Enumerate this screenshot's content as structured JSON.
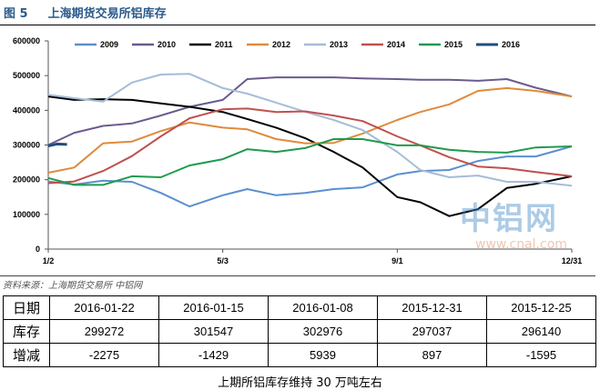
{
  "figure": {
    "number": "图 5",
    "title": "上海期货交易所铝库存"
  },
  "source": "资料来源：上海期货交易所   中铝网",
  "caption": "上期所铝库存维持 30 万吨左右",
  "watermark": {
    "logo": "中铝网",
    "url": "www.cnal.com"
  },
  "table": {
    "headers": [
      "日期",
      "2016-01-22",
      "2016-01-15",
      "2016-01-08",
      "2015-12-31",
      "2015-12-25"
    ],
    "rows": [
      {
        "label": "库存",
        "values": [
          "299272",
          "301547",
          "302976",
          "297037",
          "296140"
        ]
      },
      {
        "label": "增减",
        "values": [
          "-2275",
          "-1429",
          "5939",
          "897",
          "-1595"
        ]
      }
    ]
  },
  "chart_data": {
    "type": "line",
    "xlabel": "",
    "ylabel": "",
    "x_unit": "day of year",
    "x_ticks": [
      {
        "day": 2,
        "label": "1/2"
      },
      {
        "day": 123,
        "label": "5/3"
      },
      {
        "day": 244,
        "label": "9/1"
      },
      {
        "day": 365,
        "label": "12/31"
      }
    ],
    "ylim": [
      0,
      600000
    ],
    "y_ticks": [
      0,
      100000,
      200000,
      300000,
      400000,
      500000,
      600000
    ],
    "grid": false,
    "legend": "top",
    "x": [
      2,
      20,
      40,
      60,
      80,
      100,
      123,
      140,
      160,
      180,
      200,
      220,
      244,
      260,
      280,
      300,
      320,
      340,
      365
    ],
    "series": [
      {
        "name": "2009",
        "color": "#5b8fd0",
        "values": [
          195000,
          186000,
          197000,
          194000,
          162000,
          123000,
          155000,
          173000,
          155000,
          162000,
          173000,
          178000,
          215000,
          225000,
          228000,
          254000,
          267000,
          267000,
          296000
        ]
      },
      {
        "name": "2010",
        "color": "#6b5a8e",
        "values": [
          300000,
          335000,
          355000,
          362000,
          385000,
          410000,
          430000,
          490000,
          495000,
          495000,
          495000,
          492000,
          490000,
          488000,
          488000,
          485000,
          490000,
          465000,
          440000
        ]
      },
      {
        "name": "2011",
        "color": "#000000",
        "values": [
          440000,
          430000,
          432000,
          430000,
          420000,
          410000,
          395000,
          375000,
          350000,
          320000,
          280000,
          235000,
          150000,
          135000,
          95000,
          115000,
          176000,
          188000,
          210000
        ]
      },
      {
        "name": "2012",
        "color": "#e08a3c",
        "values": [
          220000,
          235000,
          305000,
          310000,
          340000,
          365000,
          350000,
          345000,
          317000,
          305000,
          306000,
          333000,
          372000,
          395000,
          417000,
          456000,
          464000,
          456000,
          440000
        ]
      },
      {
        "name": "2013",
        "color": "#a5bcd8",
        "values": [
          445000,
          435000,
          425000,
          480000,
          503000,
          505000,
          464000,
          448000,
          422000,
          396000,
          372000,
          343000,
          280000,
          228000,
          207000,
          212000,
          194000,
          194000,
          183000
        ]
      },
      {
        "name": "2014",
        "color": "#c0504d",
        "values": [
          190000,
          195000,
          225000,
          268000,
          325000,
          377000,
          403000,
          405000,
          395000,
          397000,
          385000,
          369000,
          325000,
          299000,
          265000,
          238000,
          233000,
          222000,
          210000
        ]
      },
      {
        "name": "2015",
        "color": "#1f9a4e",
        "values": [
          205000,
          185000,
          185000,
          210000,
          207000,
          241000,
          259000,
          288000,
          280000,
          291000,
          317000,
          317000,
          299000,
          299000,
          286000,
          280000,
          278000,
          293000,
          296000
        ]
      },
      {
        "name": "2016",
        "color": "#1f4e79",
        "x": [
          2,
          8,
          15
        ],
        "values": [
          297037,
          302976,
          301547
        ]
      }
    ]
  }
}
